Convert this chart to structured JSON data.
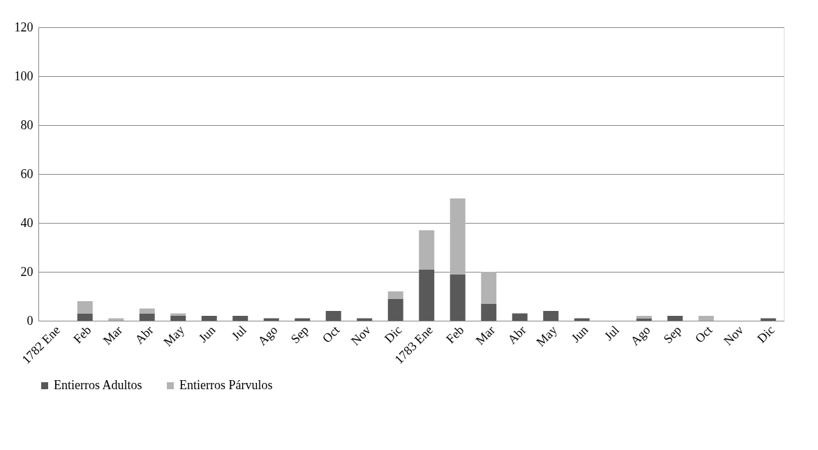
{
  "chart_data": {
    "type": "bar",
    "stacked": true,
    "categories": [
      "1782 Ene",
      "Feb",
      "Mar",
      "Abr",
      "May",
      "Jun",
      "Jul",
      "Ago",
      "Sep",
      "Oct",
      "Nov",
      "Dic",
      "1783 Ene",
      "Feb",
      "Mar",
      "Abr",
      "May",
      "Jun",
      "Jul",
      "Ago",
      "Sep",
      "Oct",
      "Nov",
      "Dic"
    ],
    "series": [
      {
        "name": "Entierros Adultos",
        "color": "#595959",
        "values": [
          0,
          3,
          0,
          3,
          2,
          2,
          2,
          1,
          1,
          4,
          1,
          9,
          21,
          19,
          7,
          3,
          4,
          1,
          0,
          1,
          2,
          0,
          0,
          1
        ]
      },
      {
        "name": "Entierros Párvulos",
        "color": "#b3b3b3",
        "values": [
          0,
          5,
          1,
          2,
          1,
          0,
          0,
          0,
          0,
          0,
          0,
          3,
          16,
          31,
          13,
          0,
          0,
          0,
          0,
          1,
          0,
          2,
          0,
          0
        ]
      }
    ],
    "ylim": [
      0,
      120
    ],
    "yticks": [
      0,
      20,
      40,
      60,
      80,
      100,
      120
    ],
    "grid": "y",
    "legend": "bottom"
  }
}
